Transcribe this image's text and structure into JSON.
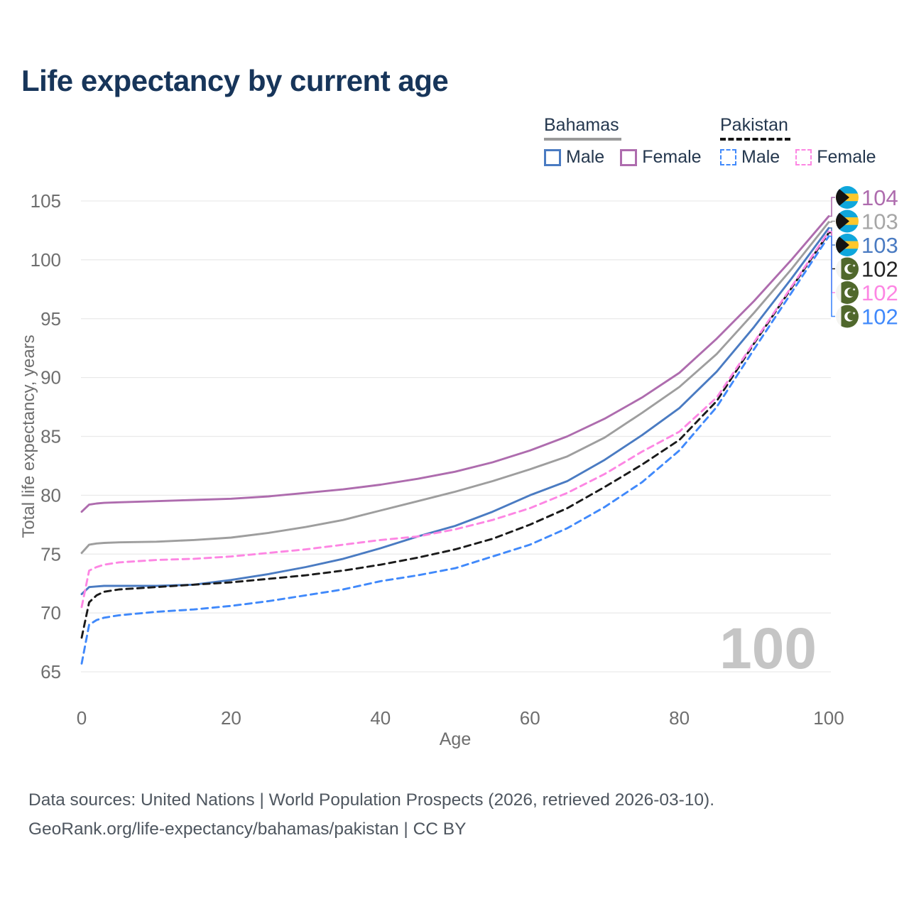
{
  "title": "Life expectancy by current age",
  "legend": {
    "groups": [
      {
        "label": "Bahamas",
        "line_style": "solid",
        "underline_color": "#9a9a9a",
        "items": [
          {
            "label": "Male",
            "color": "#4a7bc2"
          },
          {
            "label": "Female",
            "color": "#ae6cae"
          }
        ]
      },
      {
        "label": "Pakistan",
        "line_style": "dashed",
        "underline_color": "#161616",
        "items": [
          {
            "label": "Male",
            "color": "#4089fb"
          },
          {
            "label": "Female",
            "color": "#fd86e3"
          }
        ]
      }
    ]
  },
  "footer": {
    "line1": "Data sources: United Nations | World Population Prospects (2026, retrieved 2026-03-10).",
    "line2": "GeoRank.org/life-expectancy/bahamas/pakistan | CC BY"
  },
  "chart_data": {
    "type": "line",
    "title": "Life expectancy by current age",
    "xlabel": "Age",
    "ylabel": "Total life expectancy, years",
    "xlim": [
      0,
      100
    ],
    "ylim": [
      65,
      105
    ],
    "x_ticks": [
      0,
      20,
      40,
      60,
      80,
      100
    ],
    "y_ticks": [
      65,
      70,
      75,
      80,
      85,
      90,
      95,
      100,
      105
    ],
    "grid": "horizontal",
    "legend_position": "top-right",
    "watermark": "100",
    "x": [
      0,
      1,
      2,
      3,
      5,
      10,
      15,
      20,
      25,
      30,
      35,
      40,
      45,
      50,
      55,
      60,
      65,
      70,
      75,
      80,
      85,
      90,
      95,
      100
    ],
    "series": [
      {
        "id": "bahamas-female",
        "name": "Bahamas Female",
        "country": "Bahamas",
        "sex": "Female",
        "color": "#ae6cae",
        "dash": "solid",
        "values": [
          78.6,
          79.2,
          79.3,
          79.35,
          79.4,
          79.5,
          79.6,
          79.7,
          79.9,
          80.2,
          80.5,
          80.9,
          81.4,
          82.0,
          82.8,
          83.8,
          85.0,
          86.5,
          88.3,
          90.4,
          93.3,
          96.5,
          100.0,
          103.7
        ]
      },
      {
        "id": "bahamas-total",
        "name": "Bahamas",
        "country": "Bahamas",
        "sex": "Both",
        "color": "#9e9e9e",
        "dash": "solid",
        "values": [
          75.1,
          75.8,
          75.9,
          75.95,
          76.0,
          76.05,
          76.2,
          76.4,
          76.8,
          77.3,
          77.9,
          78.7,
          79.5,
          80.3,
          81.2,
          82.2,
          83.3,
          84.9,
          87.0,
          89.2,
          92.0,
          95.5,
          99.2,
          103.2
        ]
      },
      {
        "id": "bahamas-male",
        "name": "Bahamas Male",
        "country": "Bahamas",
        "sex": "Male",
        "color": "#4a7bc2",
        "dash": "solid",
        "values": [
          71.6,
          72.2,
          72.25,
          72.3,
          72.3,
          72.3,
          72.4,
          72.8,
          73.3,
          73.9,
          74.6,
          75.5,
          76.5,
          77.4,
          78.6,
          80.0,
          81.2,
          83.0,
          85.1,
          87.4,
          90.5,
          94.3,
          98.4,
          102.7
        ]
      },
      {
        "id": "pakistan-total",
        "name": "Pakistan",
        "country": "Pakistan",
        "sex": "Both",
        "color": "#1a1a1a",
        "dash": "dashed",
        "values": [
          67.9,
          70.9,
          71.5,
          71.8,
          72.0,
          72.2,
          72.4,
          72.6,
          72.9,
          73.2,
          73.6,
          74.1,
          74.7,
          75.4,
          76.3,
          77.5,
          78.9,
          80.7,
          82.6,
          84.7,
          88.0,
          92.9,
          97.6,
          102.3
        ]
      },
      {
        "id": "pakistan-female",
        "name": "Pakistan Female",
        "country": "Pakistan",
        "sex": "Female",
        "color": "#fd86e3",
        "dash": "dashed",
        "values": [
          70.5,
          73.6,
          73.9,
          74.1,
          74.3,
          74.5,
          74.6,
          74.8,
          75.1,
          75.4,
          75.8,
          76.2,
          76.5,
          77.1,
          77.9,
          78.9,
          80.2,
          81.8,
          83.7,
          85.4,
          88.3,
          93.0,
          97.7,
          102.4
        ]
      },
      {
        "id": "pakistan-male",
        "name": "Pakistan Male",
        "country": "Pakistan",
        "sex": "Male",
        "color": "#4089fb",
        "dash": "dashed",
        "values": [
          65.7,
          69.0,
          69.4,
          69.6,
          69.8,
          70.1,
          70.3,
          70.6,
          71.0,
          71.5,
          72.0,
          72.7,
          73.2,
          73.8,
          74.8,
          75.8,
          77.2,
          79.0,
          81.1,
          83.8,
          87.5,
          92.4,
          97.2,
          102.0
        ]
      }
    ],
    "end_labels": [
      {
        "value": "104",
        "color": "#ae6cae",
        "flag": "bahamas"
      },
      {
        "value": "103",
        "color": "#a6a6a6",
        "flag": "bahamas"
      },
      {
        "value": "103",
        "color": "#4a7bc2",
        "flag": "bahamas"
      },
      {
        "value": "102",
        "color": "#222222",
        "flag": "pakistan"
      },
      {
        "value": "102",
        "color": "#fd86e3",
        "flag": "pakistan"
      },
      {
        "value": "102",
        "color": "#4089fb",
        "flag": "pakistan"
      }
    ],
    "flag_colors": {
      "bahamas_aqua": "#0fa7dc",
      "bahamas_gold": "#ffc72c",
      "bahamas_black": "#141414",
      "pakistan_green": "#50682c",
      "pakistan_white": "#f4f4f1"
    }
  }
}
